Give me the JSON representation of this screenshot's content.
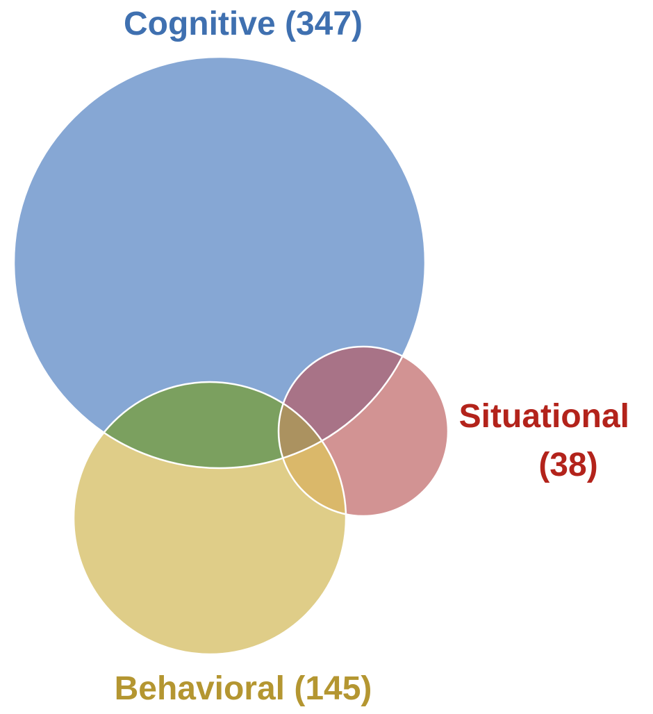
{
  "sets": [
    {
      "name": "Cognitive",
      "count": 347,
      "label": "Cognitive (347)",
      "color": "#86a7d4",
      "label_color": "#3f70b0"
    },
    {
      "name": "Behavioral",
      "count": 145,
      "label": "Behavioral (145)",
      "color": "#dfcd88",
      "label_color": "#b49631"
    },
    {
      "name": "Situational",
      "count": 38,
      "label_line1": "Situational",
      "label_line2": "(38)",
      "color": "#d29393",
      "label_color": "#b3231b"
    }
  ],
  "overlap_colors": {
    "cognitive_behavioral": "#7ba05f",
    "cognitive_situational": "#a87387",
    "behavioral_situational": "#dab86a",
    "all_three": "#ab9260"
  }
}
